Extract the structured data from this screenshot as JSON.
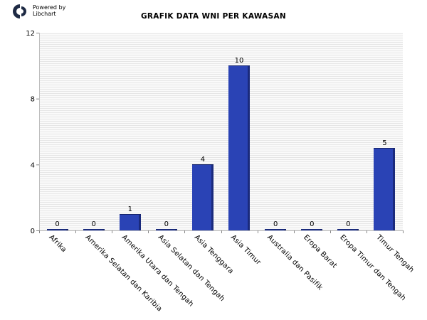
{
  "logo": {
    "line1": "Powered by",
    "line2": "Libchart"
  },
  "chart_data": {
    "type": "bar",
    "title": "GRAFIK DATA WNI PER KAWASAN",
    "xlabel": "",
    "ylabel": "",
    "categories": [
      "Afrika",
      "Amerika Selatan dan Karibia",
      "Amerika Utara dan Tengah",
      "Asia Selatan dan Tengah",
      "Asia Tenggara",
      "Asia Timur",
      "Australia dan Pasifik",
      "Eropa Barat",
      "Eropa Timur dan Tengah",
      "Timur Tengah"
    ],
    "values": [
      0,
      0,
      1,
      0,
      4,
      10,
      0,
      0,
      0,
      5
    ],
    "ylim": [
      0,
      12
    ],
    "yticks": [
      0,
      4,
      8,
      12
    ],
    "grid": true,
    "bar_color": "#2a43b5"
  }
}
